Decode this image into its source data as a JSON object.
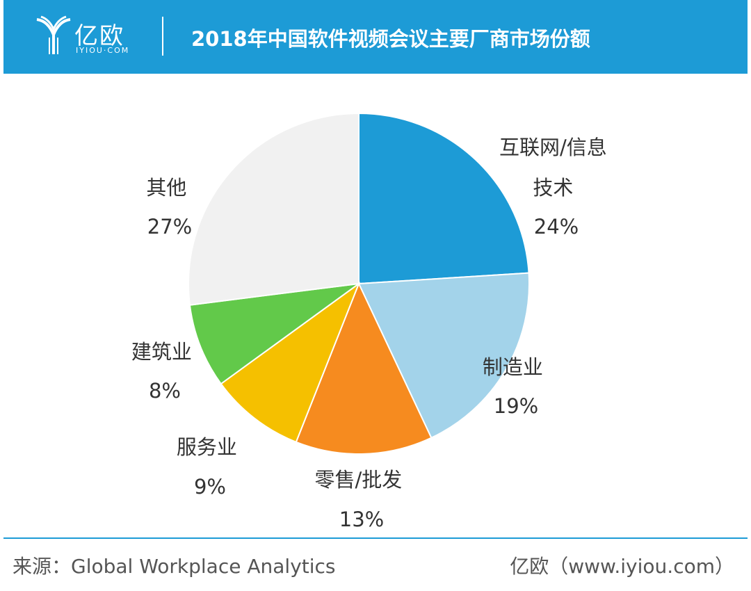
{
  "header": {
    "logo_cn": "亿欧",
    "logo_en": "IYIOU·COM"
  },
  "chart_data": {
    "type": "pie",
    "title": "2018年中国软件视频会议主要厂商市场份额",
    "slices": [
      {
        "label": "互联网/信息技术",
        "value": 24,
        "display": "24%",
        "color": "#1d9bd6"
      },
      {
        "label": "制造业",
        "value": 19,
        "display": "19%",
        "color": "#a3d3ea"
      },
      {
        "label": "零售/批发",
        "value": 13,
        "display": "13%",
        "color": "#f68b1f"
      },
      {
        "label": "服务业",
        "value": 9,
        "display": "9%",
        "color": "#f5c000"
      },
      {
        "label": "建筑业",
        "value": 8,
        "display": "8%",
        "color": "#62c94a"
      },
      {
        "label": "其他",
        "value": 27,
        "display": "27%",
        "color": "#f1f1f1"
      }
    ],
    "start": "12 o'clock",
    "direction": "clockwise"
  },
  "footer": {
    "source": "来源：Global Workplace Analytics",
    "site": "亿欧（www.iyiou.com）"
  }
}
